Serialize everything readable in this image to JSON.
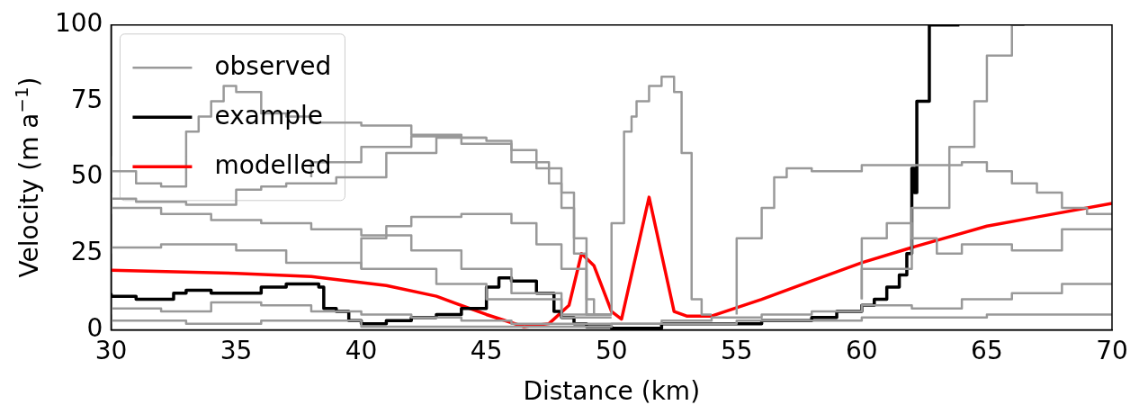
{
  "chart_data": {
    "type": "line",
    "xlabel": "Distance (km)",
    "ylabel": "Velocity (m a$^{−1}$)",
    "xlim": [
      30,
      70
    ],
    "ylim": [
      0,
      100
    ],
    "xticks": [
      30,
      35,
      40,
      45,
      50,
      55,
      60,
      65,
      70
    ],
    "yticks": [
      0,
      25,
      50,
      75,
      100
    ],
    "grid": false,
    "legend": "top left",
    "marker": "none",
    "line_style": "solid",
    "series": [
      {
        "name": "observed",
        "type": "step",
        "color": "#999999",
        "x": [
          30,
          31,
          33,
          35,
          36,
          37,
          39,
          41,
          43,
          45,
          46,
          47,
          48,
          48.5,
          49,
          49.3,
          50
        ],
        "values": [
          45,
          43,
          42,
          41,
          46,
          47,
          48,
          50,
          58,
          63,
          62,
          59,
          53,
          45,
          30,
          10,
          5
        ]
      },
      {
        "type": "step",
        "color": "#999999",
        "x": [
          38,
          40,
          42,
          44,
          46,
          47.5,
          48,
          48.5,
          49,
          49.5
        ],
        "values": [
          50,
          55,
          60,
          63.5,
          61,
          55,
          48,
          40,
          25,
          5
        ]
      },
      {
        "type": "step",
        "color": "#999999",
        "x": [
          30,
          31,
          32,
          33,
          33.5,
          34,
          34.5,
          35,
          36,
          37,
          38,
          40,
          42,
          44,
          45
        ],
        "values": [
          57,
          52,
          48,
          47,
          65,
          70,
          75,
          80,
          78,
          71,
          70,
          68,
          67,
          64,
          63
        ]
      },
      {
        "type": "step",
        "color": "#999999",
        "x": [
          50,
          50.5,
          50.8,
          51,
          51.5,
          52,
          52.5,
          52.8,
          53.2,
          53.6,
          54
        ],
        "values": [
          5,
          35,
          65,
          70,
          75,
          80,
          83,
          78,
          58,
          10,
          5
        ]
      },
      {
        "type": "step",
        "color": "#999999",
        "x": [
          55,
          56,
          56.5,
          57,
          58,
          60,
          62,
          64,
          65,
          66,
          67,
          68,
          69,
          70
        ],
        "values": [
          5,
          30,
          40,
          50,
          53,
          52,
          54,
          54,
          55,
          52,
          48,
          45,
          40,
          38
        ]
      },
      {
        "type": "step",
        "color": "#999999",
        "x": [
          60,
          62,
          63.5,
          64.5,
          65,
          66,
          66.5
        ],
        "values": [
          10,
          20,
          40,
          60,
          75,
          90,
          100
        ]
      },
      {
        "type": "step",
        "color": "#999999",
        "x": [
          40,
          41,
          42,
          44,
          46,
          47,
          48,
          49,
          50
        ],
        "values": [
          20,
          30,
          34,
          37,
          38,
          35,
          28,
          20,
          5
        ]
      },
      {
        "type": "step",
        "color": "#999999",
        "x": [
          30,
          32,
          34,
          36,
          38,
          40,
          42,
          44,
          46,
          48,
          50,
          52,
          54,
          56,
          58,
          60,
          62,
          64,
          66,
          68,
          70
        ],
        "values": [
          5,
          7,
          6,
          9,
          8,
          6,
          5,
          4,
          3,
          2,
          2,
          2,
          3,
          4,
          5,
          6,
          8,
          7,
          10,
          12,
          15
        ]
      },
      {
        "type": "step",
        "color": "#999999",
        "x": [
          30,
          33,
          36,
          40,
          45,
          50,
          55,
          60,
          65,
          70
        ],
        "values": [
          2,
          3,
          2,
          3,
          1,
          1,
          2,
          3,
          4,
          5
        ]
      },
      {
        "type": "step",
        "color": "#999999",
        "x": [
          30,
          32,
          35,
          37,
          40,
          43,
          45,
          48,
          50
        ],
        "values": [
          25,
          27,
          28,
          26,
          22,
          20,
          15,
          10,
          5
        ]
      },
      {
        "type": "step",
        "color": "#999999",
        "x": [
          60,
          61,
          62,
          63,
          64,
          66,
          68,
          70
        ],
        "values": [
          10,
          30,
          35,
          30,
          25,
          28,
          26,
          33
        ]
      },
      {
        "type": "step",
        "color": "#999999",
        "x": [
          30,
          32,
          34,
          36,
          38,
          40,
          42,
          44,
          46,
          48,
          50
        ],
        "values": [
          38,
          40,
          38,
          36,
          35,
          33,
          31,
          26,
          20,
          12,
          4
        ]
      },
      {
        "name": "example",
        "type": "step",
        "color": "#000000",
        "x": [
          30,
          31,
          32.5,
          33,
          34,
          36,
          37,
          38.3,
          38.5,
          39,
          39.5,
          40,
          41,
          42,
          43,
          44,
          45,
          45.5,
          46,
          47,
          47.7,
          48,
          48.5,
          49,
          50,
          52,
          56,
          58,
          59,
          60,
          60.5,
          61,
          61.5,
          61.8,
          62,
          62.1,
          62.2,
          62.7,
          63.4,
          63.9
        ],
        "values": [
          12,
          11,
          10,
          12,
          13,
          12,
          14,
          15,
          14,
          7,
          6,
          3,
          2,
          3,
          4,
          5,
          7,
          14,
          17,
          16,
          12,
          6,
          4,
          2,
          1,
          0.5,
          2,
          3,
          4,
          6,
          8,
          10,
          14,
          18,
          25,
          53,
          45,
          75,
          100,
          100
        ]
      },
      {
        "name": "modelled",
        "type": "line",
        "color": "#ff0000",
        "x": [
          30,
          35,
          38,
          41,
          43,
          45,
          46.5,
          47.5,
          48.3,
          48.8,
          49.3,
          50,
          50.4,
          51.5,
          52.5,
          53,
          54,
          56,
          58,
          60,
          62,
          65,
          67,
          70
        ],
        "values": [
          19.5,
          18.5,
          17.5,
          14.5,
          11,
          5,
          1,
          2,
          8,
          25,
          21,
          6,
          3.5,
          43.5,
          6,
          4.5,
          4.5,
          10,
          16,
          22,
          27,
          34,
          37,
          41.5
        ]
      }
    ]
  }
}
